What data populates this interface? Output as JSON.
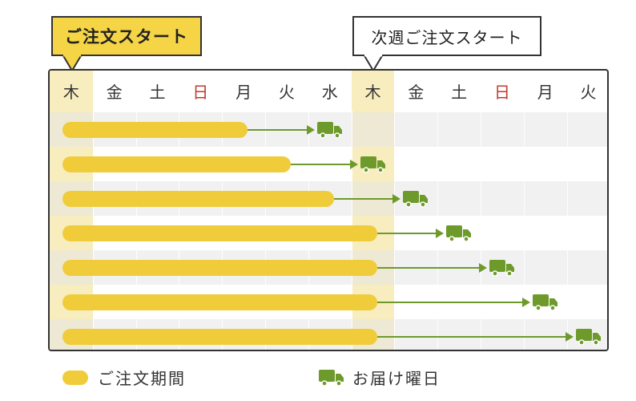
{
  "callouts": {
    "start_label": "ご注文スタート",
    "next_week_label": "次週ご注文スタート"
  },
  "days": [
    "木",
    "金",
    "土",
    "日",
    "月",
    "火",
    "水",
    "木",
    "金",
    "土",
    "日",
    "月",
    "火"
  ],
  "sunday_color": "#c0392b",
  "order_start_color": "#f5d445",
  "bar_color": "#f0cc3a",
  "arrow_color": "#6e9a2c",
  "orders": [
    {
      "order_end_day_index": 4.1,
      "delivery_day_index": 6
    },
    {
      "order_end_day_index": 5.1,
      "delivery_day_index": 7
    },
    {
      "order_end_day_index": 6.1,
      "delivery_day_index": 8
    },
    {
      "order_end_day_index": 7.1,
      "delivery_day_index": 9
    },
    {
      "order_end_day_index": 7.1,
      "delivery_day_index": 10
    },
    {
      "order_end_day_index": 7.1,
      "delivery_day_index": 11
    },
    {
      "order_end_day_index": 7.1,
      "delivery_day_index": 12
    }
  ],
  "legend": {
    "order_period_label": "ご注文期間",
    "delivery_day_label": "お届け曜日"
  }
}
